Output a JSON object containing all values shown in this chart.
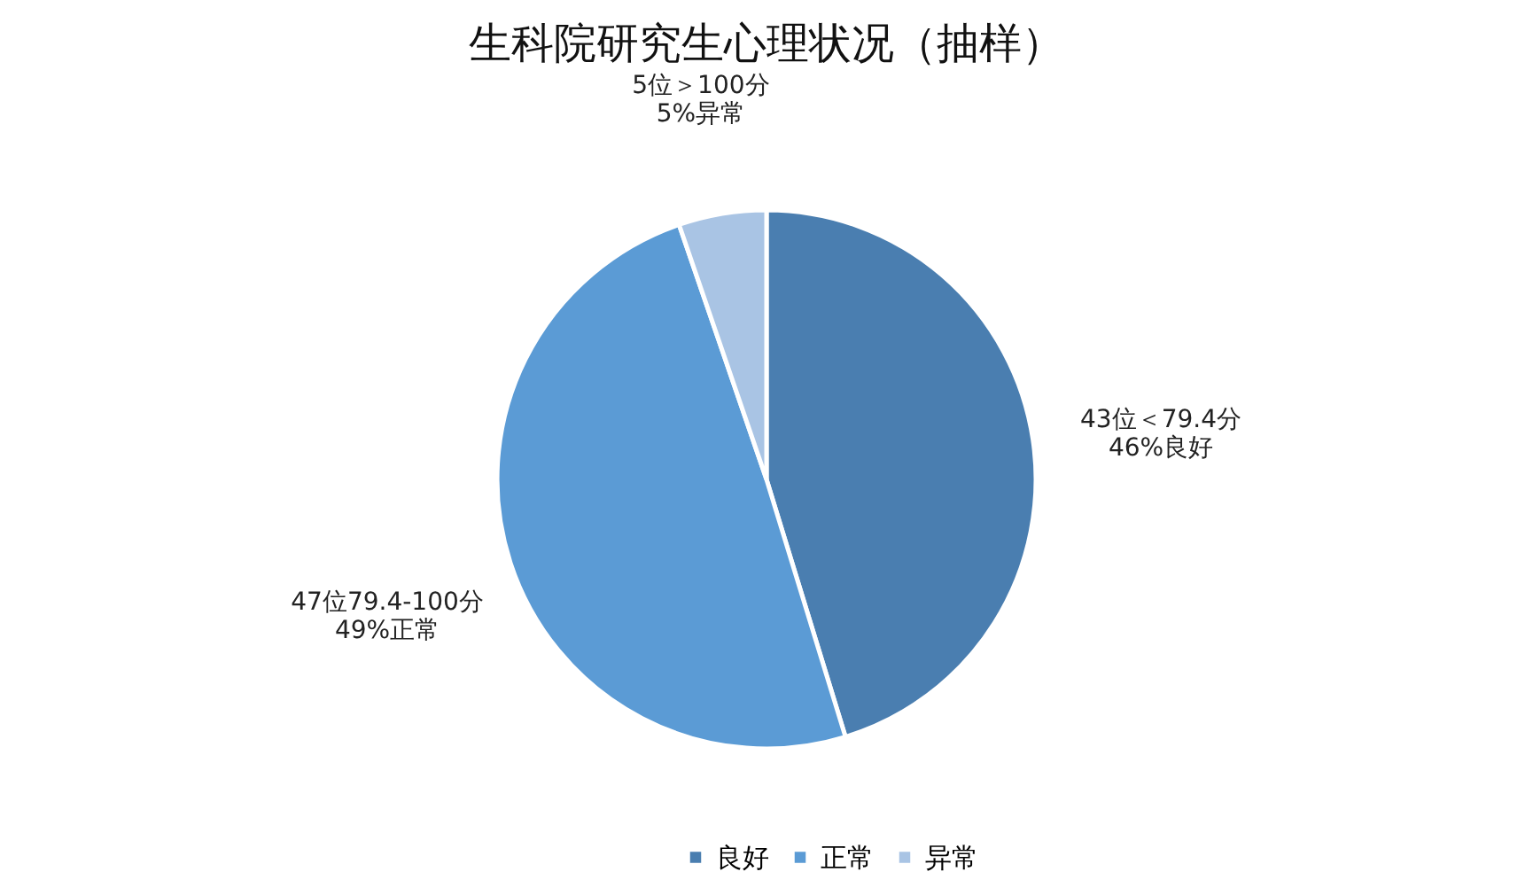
{
  "chart_data": {
    "type": "pie",
    "title": "生科院研究生心理状况（抽样）",
    "categories": [
      "良好",
      "正常",
      "异常"
    ],
    "values": [
      43,
      47,
      5
    ],
    "colors": [
      "#4a7eb0",
      "#5b9bd5",
      "#a9c4e4"
    ],
    "value_labels": [
      "43位＜79.4分\n46%良好",
      "47位79.4-100分\n49%正常",
      "5位＞100分\n5%异常"
    ],
    "legend": "bottom"
  }
}
